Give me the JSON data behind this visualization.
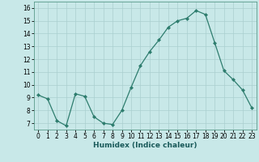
{
  "x": [
    0,
    1,
    2,
    3,
    4,
    5,
    6,
    7,
    8,
    9,
    10,
    11,
    12,
    13,
    14,
    15,
    16,
    17,
    18,
    19,
    20,
    21,
    22,
    23
  ],
  "y": [
    9.2,
    8.9,
    7.2,
    6.8,
    9.3,
    9.1,
    7.5,
    7.0,
    6.9,
    8.0,
    9.8,
    11.5,
    12.6,
    13.5,
    14.5,
    15.0,
    15.2,
    15.8,
    15.5,
    13.3,
    11.1,
    10.4,
    9.6,
    8.2
  ],
  "xlabel": "Humidex (Indice chaleur)",
  "xlim": [
    -0.5,
    23.5
  ],
  "ylim": [
    6.5,
    16.5
  ],
  "yticks": [
    7,
    8,
    9,
    10,
    11,
    12,
    13,
    14,
    15,
    16
  ],
  "xticks": [
    0,
    1,
    2,
    3,
    4,
    5,
    6,
    7,
    8,
    9,
    10,
    11,
    12,
    13,
    14,
    15,
    16,
    17,
    18,
    19,
    20,
    21,
    22,
    23
  ],
  "line_color": "#2e7d6e",
  "marker": "D",
  "marker_size": 2.0,
  "bg_color": "#c8e8e8",
  "grid_color": "#aacfcf",
  "xlabel_fontsize": 6.5,
  "tick_fontsize": 5.5,
  "line_width": 0.9
}
